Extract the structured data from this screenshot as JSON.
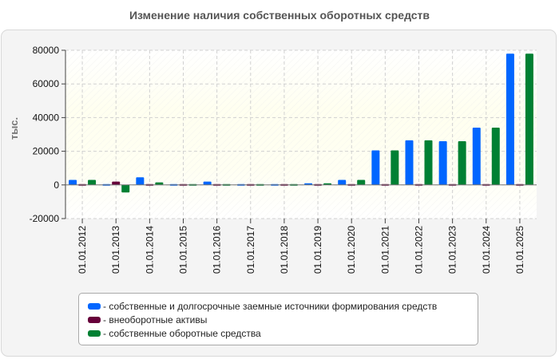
{
  "chart_data": {
    "type": "bar",
    "title": "Изменение наличия собственных оборотных средств",
    "ylabel": "тыс.",
    "xlabel": "",
    "ylim": [
      -20000,
      80000
    ],
    "yticks": [
      80000,
      60000,
      40000,
      20000,
      0,
      -20000
    ],
    "ytick_labels": [
      "80000",
      "60000",
      "40000",
      "20000",
      "0",
      "-20000"
    ],
    "grid": true,
    "legend_position": "bottom",
    "categories": [
      "01.01.2012",
      "01.01.2013",
      "01.01.2014",
      "01.01.2015",
      "01.01.2016",
      "01.01.2017",
      "01.01.2018",
      "01.01.2019",
      "01.01.2020",
      "01.01.2021",
      "01.01.2022",
      "01.01.2023",
      "01.01.2024",
      "01.01.2025"
    ],
    "series": [
      {
        "name": "- собственные и долгосрочные заемные источники формирования средств",
        "color": "#0066ff",
        "values": [
          3000,
          500,
          4500,
          800,
          2000,
          700,
          700,
          1000,
          3000,
          20500,
          26500,
          26000,
          34000,
          78000
        ]
      },
      {
        "name": "- внеоборотные активы",
        "color": "#66003a",
        "values": [
          500,
          2000,
          500,
          700,
          500,
          700,
          700,
          500,
          300,
          300,
          300,
          300,
          300,
          300
        ]
      },
      {
        "name": "- собственные оборотные средства",
        "color": "#008033",
        "values": [
          3000,
          -4500,
          1500,
          800,
          800,
          700,
          700,
          1000,
          3000,
          20500,
          26500,
          26000,
          34000,
          78000
        ]
      }
    ]
  }
}
